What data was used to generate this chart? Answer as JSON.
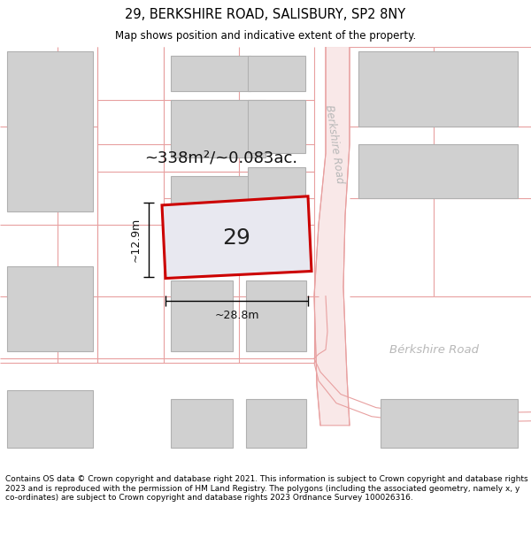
{
  "title": "29, BERKSHIRE ROAD, SALISBURY, SP2 8NY",
  "subtitle": "Map shows position and indicative extent of the property.",
  "footer": "Contains OS data © Crown copyright and database right 2021. This information is subject to Crown copyright and database rights 2023 and is reproduced with the permission of HM Land Registry. The polygons (including the associated geometry, namely x, y co-ordinates) are subject to Crown copyright and database rights 2023 Ordnance Survey 100026316.",
  "bg_color": "#ffffff",
  "map_bg": "#ffffff",
  "road_line_color": "#e8a0a0",
  "building_fill": "#d0d0d0",
  "building_edge": "#b0b0b0",
  "highlight_fill": "#e8e8f0",
  "highlight_edge": "#cc0000",
  "road_label_color": "#b0b0b0",
  "area_text": "~338m²/~0.083ac.",
  "number_text": "29",
  "dim_width": "~28.8m",
  "dim_height": "~12.9m",
  "berkshire_road_label_upper": "Berkshire Road",
  "berkshire_road_label_lower": "Bérkshire Road"
}
